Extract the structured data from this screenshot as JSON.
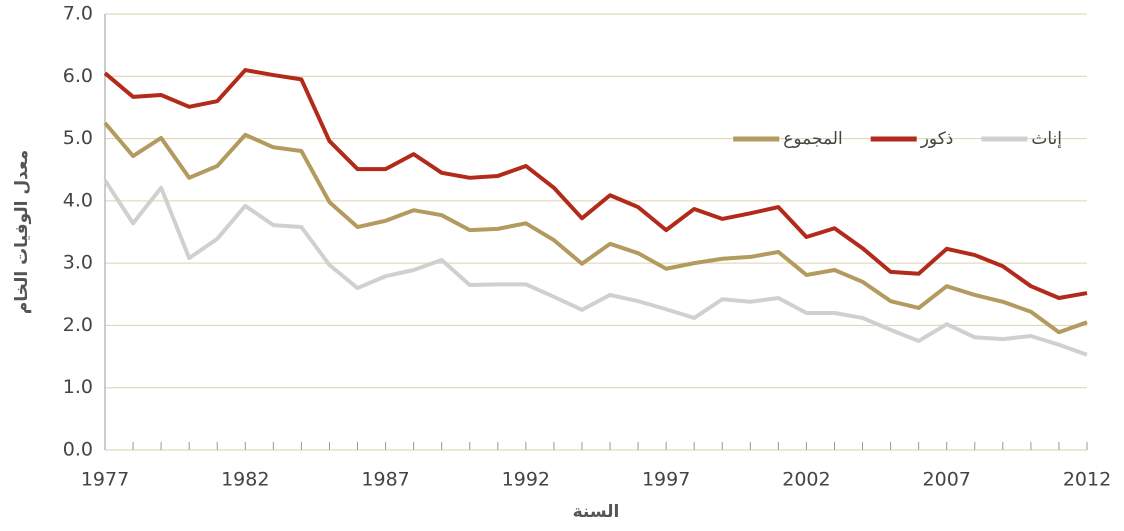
{
  "chart_data": {
    "type": "line",
    "x_label": "السنة",
    "y_label": "معدل الوفيات الخام",
    "x": [
      1977,
      1978,
      1979,
      1980,
      1981,
      1982,
      1983,
      1984,
      1985,
      1986,
      1987,
      1988,
      1989,
      1990,
      1991,
      1992,
      1993,
      1994,
      1995,
      1996,
      1997,
      1998,
      1999,
      2000,
      2001,
      2002,
      2003,
      2004,
      2005,
      2006,
      2007,
      2008,
      2009,
      2010,
      2011,
      2012
    ],
    "series": [
      {
        "name": "إناث",
        "color": "#d0d0d0",
        "values": [
          4.33,
          3.64,
          4.21,
          3.08,
          3.39,
          3.92,
          3.61,
          3.58,
          2.97,
          2.6,
          2.79,
          2.89,
          3.05,
          2.65,
          2.66,
          2.66,
          2.46,
          2.25,
          2.49,
          2.39,
          2.26,
          2.12,
          2.42,
          2.38,
          2.44,
          2.2,
          2.2,
          2.12,
          1.93,
          1.75,
          2.02,
          1.81,
          1.78,
          1.83,
          1.69,
          1.53
        ]
      },
      {
        "name": "ذكور",
        "color": "#b22a1a",
        "values": [
          6.05,
          5.67,
          5.7,
          5.51,
          5.6,
          6.1,
          6.02,
          5.95,
          4.96,
          4.51,
          4.51,
          4.75,
          4.45,
          4.37,
          4.4,
          4.56,
          4.21,
          3.72,
          4.09,
          3.9,
          3.53,
          3.87,
          3.71,
          3.8,
          3.9,
          3.42,
          3.56,
          3.24,
          2.86,
          2.83,
          3.23,
          3.13,
          2.95,
          2.63,
          2.44,
          2.52
        ]
      },
      {
        "name": "المجموع",
        "color": "#b39a5e",
        "values": [
          5.25,
          4.72,
          5.01,
          4.37,
          4.56,
          5.06,
          4.86,
          4.8,
          3.98,
          3.58,
          3.68,
          3.85,
          3.77,
          3.53,
          3.55,
          3.64,
          3.37,
          2.99,
          3.31,
          3.16,
          2.91,
          3.0,
          3.07,
          3.1,
          3.18,
          2.81,
          2.89,
          2.7,
          2.39,
          2.28,
          2.63,
          2.49,
          2.38,
          2.22,
          1.89,
          2.05
        ]
      }
    ],
    "xlim": [
      1977,
      2012
    ],
    "xticks": [
      1977,
      1982,
      1987,
      1992,
      1997,
      2002,
      2007,
      2012
    ],
    "ylim": [
      0,
      7
    ],
    "yticks": [
      {
        "value": 0,
        "label": "0.0"
      },
      {
        "value": 1,
        "label": "1.0"
      },
      {
        "value": 2,
        "label": "2.0"
      },
      {
        "value": 3,
        "label": "3.0"
      },
      {
        "value": 4,
        "label": "4.0"
      },
      {
        "value": 5,
        "label": "5.0"
      },
      {
        "value": 6,
        "label": "6.0"
      },
      {
        "value": 7,
        "label": "7.0"
      }
    ],
    "grid": true,
    "grid_color": "#ddd3ae"
  }
}
